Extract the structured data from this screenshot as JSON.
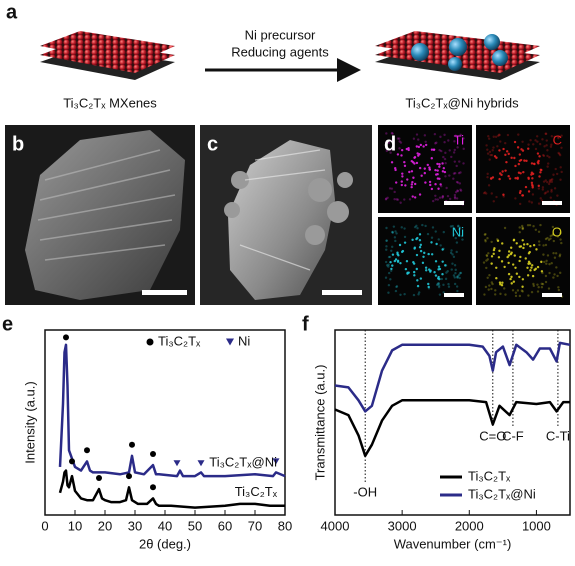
{
  "figure": {
    "panel_labels": [
      "a",
      "b",
      "c",
      "d"
    ],
    "scheme": {
      "step1": "Ni precursor",
      "step2": "Reducing agents",
      "left": "Ti₃C₂Tₓ MXenes",
      "right": "Ti₃C₂Tₓ@Ni hybrids"
    },
    "maps": [
      {
        "label": "Ti",
        "color": "#e020e0"
      },
      {
        "label": "C",
        "color": "#e02020"
      },
      {
        "label": "Ni",
        "color": "#20c8d8"
      },
      {
        "label": "O",
        "color": "#d8d020"
      }
    ]
  },
  "chart_data": [
    {
      "panel": "e",
      "type": "line",
      "xlabel": "2θ (deg.)",
      "ylabel": "Intensity (a.u.)",
      "xlim": [
        0,
        80
      ],
      "ylim": [
        0,
        10
      ],
      "xticks": [
        0,
        10,
        20,
        30,
        40,
        50,
        60,
        70,
        80
      ],
      "series": [
        {
          "name": "Ti₃C₂Tₓ@Ni",
          "color": "#2b2b88",
          "x": [
            5,
            6,
            6.5,
            7,
            7.5,
            8,
            10,
            12,
            14,
            15,
            16,
            20,
            25,
            28,
            29,
            30,
            33,
            36,
            37,
            38,
            44,
            45,
            46,
            50,
            52,
            53,
            60,
            70,
            76,
            77,
            80
          ],
          "values": [
            2.6,
            6,
            8.8,
            9.2,
            7,
            3.5,
            2.6,
            2.4,
            2.9,
            2.4,
            2.3,
            2.3,
            2.2,
            2.3,
            3.2,
            2.3,
            2.2,
            2.7,
            2.2,
            2.2,
            2.1,
            2.4,
            2.1,
            2.1,
            2.3,
            2.1,
            2.1,
            2.2,
            2.1,
            2.3,
            2.1
          ]
        },
        {
          "name": "Ti₃C₂Tₓ",
          "color": "#000000",
          "x": [
            5,
            6,
            6.5,
            7,
            7.5,
            8,
            9,
            10,
            12,
            14,
            16,
            18,
            19,
            20,
            22,
            25,
            27,
            28,
            29,
            31,
            34,
            36,
            37,
            38,
            42,
            50,
            60,
            65,
            70,
            75,
            80
          ],
          "values": [
            1.2,
            1.8,
            2.3,
            2.4,
            1.6,
            1.5,
            2.1,
            1.3,
            0.9,
            0.8,
            0.8,
            1.4,
            0.9,
            0.8,
            0.7,
            0.7,
            0.8,
            1.5,
            0.8,
            0.6,
            0.6,
            0.9,
            0.6,
            0.5,
            0.5,
            0.4,
            0.5,
            0.6,
            0.6,
            0.5,
            0.5
          ]
        }
      ],
      "markers": [
        {
          "name": "Ti₃C₂Tₓ",
          "symbol": "circle",
          "color": "#000000",
          "x": [
            7,
            14,
            29,
            36,
            9,
            18,
            28,
            36
          ],
          "values": [
            9.6,
            3.5,
            3.8,
            3.3,
            2.9,
            2,
            2.1,
            1.5
          ]
        },
        {
          "name": "Ni",
          "symbol": "triangle",
          "color": "#2b2b88",
          "x": [
            44,
            52,
            77
          ],
          "values": [
            2.8,
            2.8,
            2.9
          ]
        }
      ],
      "legend": "upper right"
    },
    {
      "panel": "f",
      "type": "line",
      "xlabel": "Wavenumber (cm⁻¹)",
      "ylabel": "Transmittance (a.u.)",
      "xlim": [
        4000,
        500
      ],
      "ylim": [
        0,
        10
      ],
      "xticks": [
        4000,
        3000,
        2000,
        1000
      ],
      "series": [
        {
          "name": "Ti₃C₂Tₓ",
          "color": "#000000",
          "x": [
            4000,
            3800,
            3650,
            3550,
            3450,
            3300,
            3150,
            3000,
            2500,
            2000,
            1750,
            1650,
            1550,
            1400,
            1300,
            1000,
            800,
            700,
            600,
            500
          ],
          "values": [
            5.7,
            5.4,
            4.3,
            3.2,
            3.8,
            5.1,
            5.9,
            6.2,
            6.2,
            6.2,
            6.1,
            4.9,
            5.9,
            5.4,
            6.1,
            6,
            6.1,
            5.6,
            6.1,
            6.1
          ]
        },
        {
          "name": "Ti₃C₂Tₓ@Ni",
          "color": "#2b2b88",
          "x": [
            4000,
            3800,
            3650,
            3550,
            3450,
            3300,
            3150,
            3000,
            2500,
            2000,
            1800,
            1700,
            1650,
            1600,
            1500,
            1400,
            1300,
            1150,
            1050,
            950,
            800,
            700,
            650,
            500
          ],
          "values": [
            7,
            6.9,
            6.2,
            5.6,
            5.9,
            7.8,
            8.9,
            9.2,
            9.2,
            9.2,
            9.1,
            8.6,
            7.8,
            8.8,
            9.1,
            8.1,
            9.2,
            8.8,
            8.4,
            9,
            9,
            8.3,
            9.3,
            9.2
          ]
        }
      ],
      "annotations": [
        {
          "label": "-OH",
          "x": 3550
        },
        {
          "label": "C=O",
          "x": 1650
        },
        {
          "label": "C-F",
          "x": 1350
        },
        {
          "label": "C-Ti",
          "x": 680
        }
      ],
      "legend": "lower right"
    }
  ]
}
